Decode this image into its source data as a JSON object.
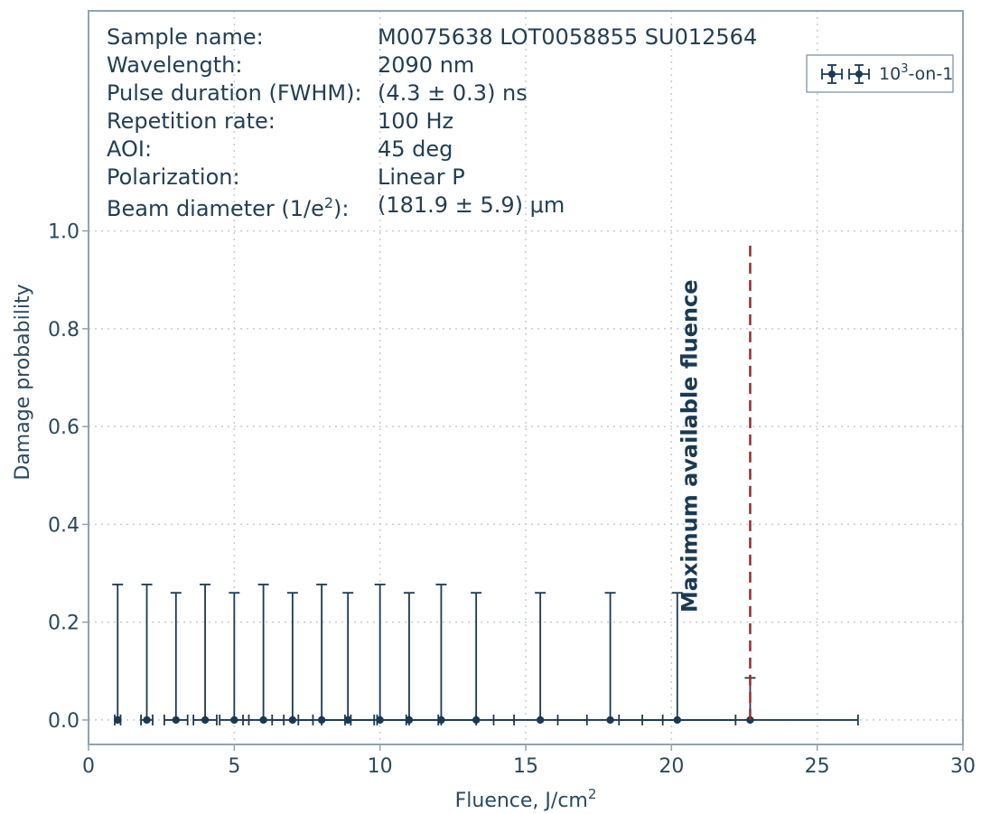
{
  "info": {
    "rows": [
      {
        "label": "Sample name:",
        "value": "M0075638 LOT0058855 SU012564"
      },
      {
        "label": "Wavelength:",
        "value": "2090 nm"
      },
      {
        "label": "Pulse duration (FWHM):",
        "value": "(4.3 ± 0.3) ns"
      },
      {
        "label": "Repetition rate:",
        "value": "100 Hz"
      },
      {
        "label": "AOI:",
        "value": "45 deg"
      },
      {
        "label": "Polarization:",
        "value": "Linear P"
      }
    ],
    "beam_label_prefix": "Beam diameter (1/e",
    "beam_label_sup": "2",
    "beam_label_suffix": "):",
    "beam_value": "(181.9 ± 5.9) μm"
  },
  "chart_data": {
    "type": "scatter",
    "xlabel_main": "Fluence, J/cm",
    "xlabel_sup": "2",
    "ylabel": "Damage probability",
    "xlim": [
      0,
      30
    ],
    "ylim": [
      -0.05,
      1.45
    ],
    "xticks": [
      0,
      5,
      10,
      15,
      20,
      25,
      30
    ],
    "yticks": [
      0.0,
      0.2,
      0.4,
      0.6,
      0.8,
      1.0
    ],
    "ytick_labels": [
      "0.0",
      "0.2",
      "0.4",
      "0.6",
      "0.8",
      "1.0"
    ],
    "grid": true,
    "legend": {
      "position": "top-right",
      "label_base": "10",
      "label_sup": "3",
      "label_rest": "-on-1"
    },
    "series": [
      {
        "name": "10³-on-1",
        "color": "#1b3a52",
        "points": [
          {
            "x": 1.0,
            "xerr": 0.1,
            "y": 0.0,
            "yerr_low": 0.0,
            "yerr_high": 0.277
          },
          {
            "x": 2.0,
            "xerr": 0.2,
            "y": 0.0,
            "yerr_low": 0.0,
            "yerr_high": 0.277
          },
          {
            "x": 3.0,
            "xerr": 0.4,
            "y": 0.0,
            "yerr_low": 0.0,
            "yerr_high": 0.26
          },
          {
            "x": 4.0,
            "xerr": 0.4,
            "y": 0.0,
            "yerr_low": 0.0,
            "yerr_high": 0.277
          },
          {
            "x": 5.0,
            "xerr": 0.5,
            "y": 0.0,
            "yerr_low": 0.0,
            "yerr_high": 0.26
          },
          {
            "x": 6.0,
            "xerr": 0.7,
            "y": 0.0,
            "yerr_low": 0.0,
            "yerr_high": 0.277
          },
          {
            "x": 7.0,
            "xerr": 0.7,
            "y": 0.0,
            "yerr_low": 0.0,
            "yerr_high": 0.26
          },
          {
            "x": 8.0,
            "xerr": 0.8,
            "y": 0.0,
            "yerr_low": 0.0,
            "yerr_high": 0.277
          },
          {
            "x": 8.9,
            "xerr": 0.9,
            "y": 0.0,
            "yerr_low": 0.0,
            "yerr_high": 0.26
          },
          {
            "x": 10.0,
            "xerr": 1.0,
            "y": 0.0,
            "yerr_low": 0.0,
            "yerr_high": 0.277
          },
          {
            "x": 11.0,
            "xerr": 1.1,
            "y": 0.0,
            "yerr_low": 0.0,
            "yerr_high": 0.26
          },
          {
            "x": 12.1,
            "xerr": 1.2,
            "y": 0.0,
            "yerr_low": 0.0,
            "yerr_high": 0.277
          },
          {
            "x": 13.3,
            "xerr": 1.3,
            "y": 0.0,
            "yerr_low": 0.0,
            "yerr_high": 0.26
          },
          {
            "x": 15.5,
            "xerr": 1.6,
            "y": 0.0,
            "yerr_low": 0.0,
            "yerr_high": 0.26
          },
          {
            "x": 17.9,
            "xerr": 1.8,
            "y": 0.0,
            "yerr_low": 0.0,
            "yerr_high": 0.26
          },
          {
            "x": 20.2,
            "xerr": 2.0,
            "y": 0.0,
            "yerr_low": 0.0,
            "yerr_high": 0.26
          },
          {
            "x": 22.7,
            "xerr": 3.7,
            "y": 0.0,
            "yerr_low": 0.0,
            "yerr_high": 0.086
          }
        ]
      }
    ],
    "vline": {
      "x": 22.7,
      "ymax": 0.98,
      "color": "#9a2a2a",
      "style": "dashed"
    },
    "annotation": {
      "text": "Maximum available fluence",
      "x": 20.6,
      "y": 0.56,
      "rotation": -90
    }
  }
}
